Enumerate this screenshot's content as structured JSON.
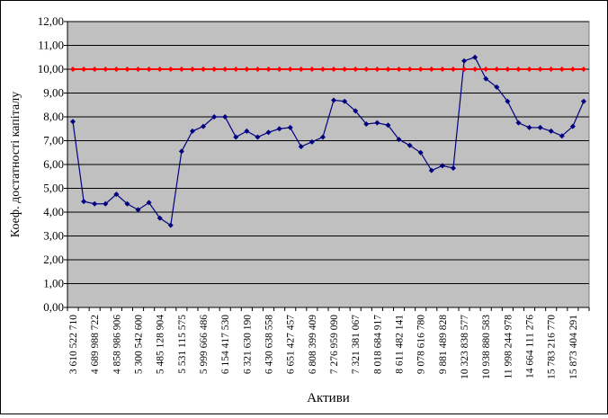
{
  "chart_data": {
    "type": "line",
    "title": "",
    "xlabel": "Активи",
    "ylabel": "Коеф. достатності капіталу",
    "ylim": [
      0,
      12
    ],
    "yticks": [
      "0,00",
      "1,00",
      "2,00",
      "3,00",
      "4,00",
      "5,00",
      "6,00",
      "7,00",
      "8,00",
      "9,00",
      "10,00",
      "11,00",
      "12,00"
    ],
    "grid": true,
    "plot_background": "#C0C0C0",
    "x_tick_labels": [
      "3 610 522 710",
      "4 689 988 722",
      "4 858 986 906",
      "5 300 542 600",
      "5 485 128 904",
      "5 531 115 575",
      "5 999 666 486",
      "6 154 417 530",
      "6 321 630 190",
      "6 430 638 558",
      "6 651 427 457",
      "6 808 399 409",
      "7 276 959 090",
      "7 321 381 067",
      "8 018 684 917",
      "8 611 482 141",
      "9 078 616 780",
      "9 881 489 828",
      "10 323 838 577",
      "10 938 880 583",
      "11 998 244 978",
      "14 664 111 276",
      "15 783 216 770",
      "15 873 404 291"
    ],
    "series": [
      {
        "color": "#000080",
        "marker": "diamond",
        "values": [
          7.8,
          4.45,
          4.35,
          4.35,
          4.75,
          4.35,
          4.1,
          4.4,
          3.75,
          3.45,
          6.55,
          7.4,
          7.6,
          8.0,
          8.0,
          7.15,
          7.4,
          7.15,
          7.35,
          7.5,
          7.55,
          6.75,
          6.95,
          7.15,
          8.7,
          8.65,
          8.25,
          7.7,
          7.75,
          7.65,
          7.05,
          6.8,
          6.5,
          5.75,
          5.95,
          5.85,
          10.35,
          10.5,
          9.6,
          9.25,
          8.65,
          7.75,
          7.55,
          7.55,
          7.4,
          7.2,
          7.6,
          8.65
        ]
      },
      {
        "color": "#FF0000",
        "marker": "diamond",
        "values": [
          10,
          10,
          10,
          10,
          10,
          10,
          10,
          10,
          10,
          10,
          10,
          10,
          10,
          10,
          10,
          10,
          10,
          10,
          10,
          10,
          10,
          10,
          10,
          10,
          10,
          10,
          10,
          10,
          10,
          10,
          10,
          10,
          10,
          10,
          10,
          10,
          10,
          10,
          10,
          10,
          10,
          10,
          10,
          10,
          10,
          10,
          10,
          10
        ]
      }
    ]
  }
}
